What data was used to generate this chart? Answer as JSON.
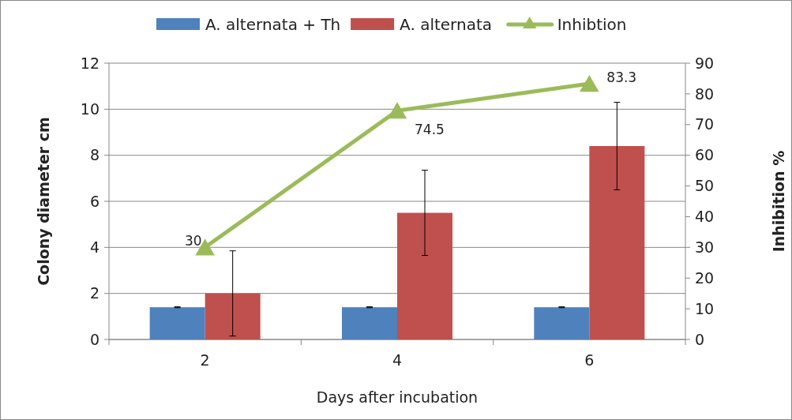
{
  "chart_data": {
    "type": "bar",
    "xlabel": "Days after incubation",
    "ylabel": "Colony diameter cm",
    "y2label": "Inhibition %",
    "categories": [
      "2",
      "4",
      "6"
    ],
    "series": [
      {
        "name": "A. alternata + Th",
        "color": "#4f81bd",
        "values": [
          1.4,
          1.4,
          1.4
        ],
        "errors": [
          0.02,
          0.02,
          0.02
        ]
      },
      {
        "name": "A. alternata",
        "color": "#c0504d",
        "values": [
          2.0,
          5.5,
          8.4
        ],
        "errors": [
          1.85,
          1.85,
          1.9
        ]
      },
      {
        "name": "Inhibtion",
        "type": "line",
        "axis": "y2",
        "color": "#9bbb59",
        "values": [
          30,
          74.5,
          83.3
        ],
        "marker": "triangle",
        "data_labels": true
      }
    ],
    "ylim": [
      0,
      12
    ],
    "yticks": [
      0,
      2,
      4,
      6,
      8,
      10,
      12
    ],
    "y2lim": [
      0,
      90
    ],
    "y2ticks": [
      0,
      10,
      20,
      30,
      40,
      50,
      60,
      70,
      80,
      90
    ],
    "grid": "y",
    "legend": "top"
  }
}
